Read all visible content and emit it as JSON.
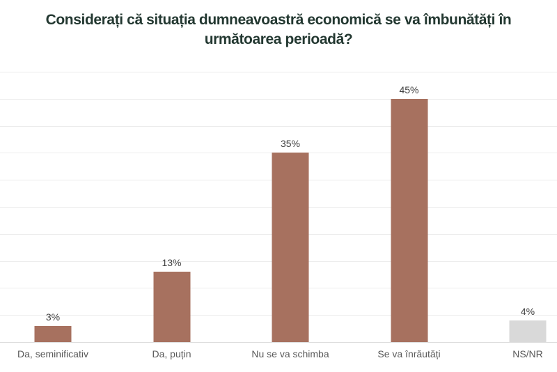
{
  "header": {
    "title_line1": "Considerați că situația dumneavoastră economică se va îmbunătăți în",
    "title_line2": "următoarea perioadă?",
    "title_color": "#233831"
  },
  "chart_data": {
    "type": "bar",
    "title": "Considerați că situația dumneavoastră economică se va îmbunătăți în următoarea perioadă?",
    "categories": [
      "Da, seminificativ",
      "Da, puțin",
      "Nu se va schimba",
      "Se va înrăutăți",
      "NS/NR"
    ],
    "values": [
      3,
      13,
      35,
      45,
      4
    ],
    "value_labels": [
      "3%",
      "13%",
      "35%",
      "45%",
      "4%"
    ],
    "bar_colors": [
      "#a7715f",
      "#a7715f",
      "#a7715f",
      "#a7715f",
      "#d9d9d9"
    ],
    "xlabel": "",
    "ylabel": "",
    "ylim": [
      0,
      50
    ],
    "grid_step": 5,
    "grid": true,
    "legend": "none",
    "grid_color": "#ececec",
    "baseline_color": "#dcdcdc"
  }
}
